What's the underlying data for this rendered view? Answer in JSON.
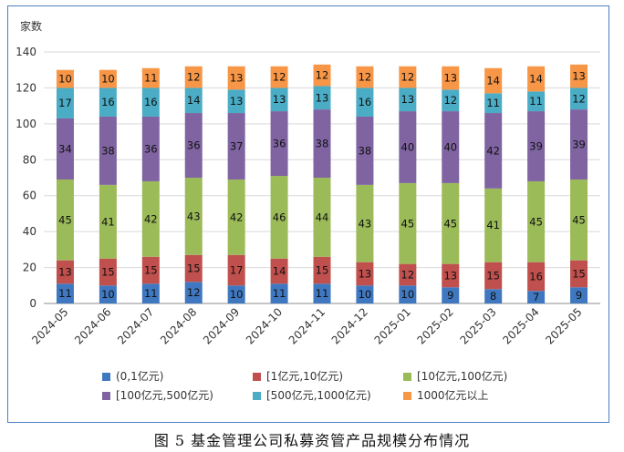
{
  "caption": "图 5   基金管理公司私募资管产品规模分布情况",
  "chart_data": {
    "type": "bar",
    "stacked": true,
    "ylabel": "家数",
    "ylim": [
      0,
      140
    ],
    "yticks": [
      0,
      20,
      40,
      60,
      80,
      100,
      120,
      140
    ],
    "grid": true,
    "legend_position": "bottom",
    "categories": [
      "2024-05",
      "2024-06",
      "2024-07",
      "2024-08",
      "2024-09",
      "2024-10",
      "2024-11",
      "2024-12",
      "2025-01",
      "2025-02",
      "2025-03",
      "2025-04",
      "2025-05"
    ],
    "series": [
      {
        "name": "(0,1亿元)",
        "color": "#3f78c0",
        "values": [
          11,
          10,
          11,
          12,
          10,
          11,
          11,
          10,
          10,
          9,
          8,
          7,
          9
        ]
      },
      {
        "name": "[1亿元,10亿元)",
        "color": "#c0504d",
        "values": [
          13,
          15,
          15,
          15,
          17,
          14,
          15,
          13,
          12,
          13,
          15,
          16,
          15
        ]
      },
      {
        "name": "[10亿元,100亿元)",
        "color": "#9bbb59",
        "values": [
          45,
          41,
          42,
          43,
          42,
          46,
          44,
          43,
          45,
          45,
          41,
          45,
          45
        ]
      },
      {
        "name": "[100亿元,500亿元)",
        "color": "#8064a2",
        "values": [
          34,
          38,
          36,
          36,
          37,
          36,
          38,
          38,
          40,
          40,
          42,
          39,
          39
        ]
      },
      {
        "name": "[500亿元,1000亿元)",
        "color": "#4bacc6",
        "values": [
          17,
          16,
          16,
          14,
          13,
          13,
          13,
          16,
          13,
          12,
          11,
          11,
          12
        ]
      },
      {
        "name": "1000亿元以上",
        "color": "#f79646",
        "values": [
          10,
          10,
          11,
          12,
          13,
          12,
          12,
          12,
          12,
          13,
          14,
          14,
          13
        ]
      }
    ]
  }
}
